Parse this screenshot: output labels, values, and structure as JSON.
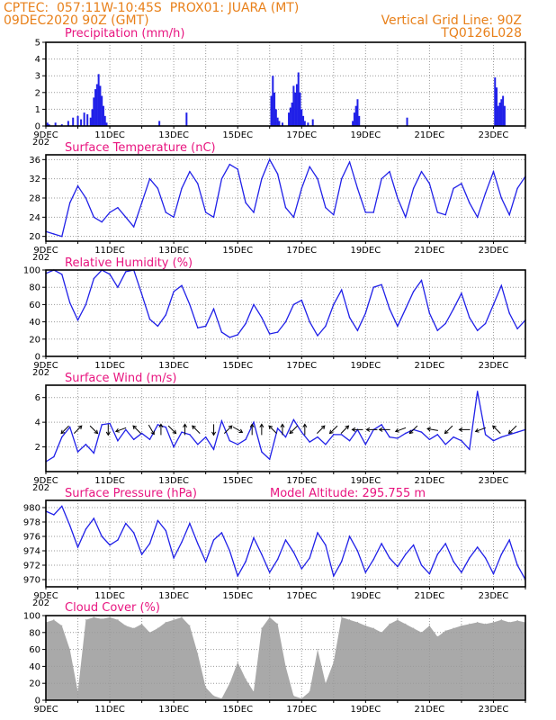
{
  "header": {
    "line1_left": "CPTEC:  057:11W-10:45S  PROX01: JUARA (MT)",
    "line2_left": "09DEC2020 90Z (GMT)",
    "line2_right": "Vertical Grid Line: 90Z",
    "line3_right": "TQ0126L028"
  },
  "colors": {
    "header": "#e8801a",
    "title": "#e8147f",
    "series": "#2020e8",
    "cloud": "#a9a9a9",
    "grid": "#9a9a9a"
  },
  "x_axis": {
    "labels": [
      "9DEC",
      "11DEC",
      "13DEC",
      "15DEC",
      "17DEC",
      "19DEC",
      "21DEC",
      "23DEC"
    ],
    "year_stub": "202"
  },
  "chart_data": [
    {
      "type": "bar",
      "title": "Precipitation (mm/h)",
      "ylim": [
        0,
        5
      ],
      "yticks": [
        0,
        1,
        2,
        3,
        4,
        5
      ],
      "x": [
        0.05,
        0.1,
        0.3,
        0.5,
        0.7,
        0.85,
        1.0,
        1.1,
        1.2,
        1.3,
        1.4,
        1.45,
        1.5,
        1.55,
        1.6,
        1.65,
        1.7,
        1.75,
        1.8,
        1.85,
        1.9,
        3.55,
        4.4,
        7.05,
        7.1,
        7.15,
        7.2,
        7.25,
        7.3,
        7.4,
        7.6,
        7.65,
        7.7,
        7.75,
        7.8,
        7.85,
        7.9,
        7.95,
        8.0,
        8.05,
        8.1,
        8.2,
        8.35,
        9.6,
        9.65,
        9.7,
        9.75,
        9.8,
        11.3,
        14.05,
        14.1,
        14.15,
        14.2,
        14.25,
        14.3,
        14.35
      ],
      "values": [
        0.2,
        0.1,
        0.2,
        0.1,
        0.3,
        0.5,
        0.6,
        0.4,
        0.8,
        0.7,
        0.5,
        1.0,
        1.7,
        2.2,
        2.5,
        3.1,
        2.4,
        1.8,
        1.2,
        0.6,
        0.2,
        0.3,
        0.8,
        1.8,
        3.0,
        2.0,
        1.0,
        0.5,
        0.3,
        0.2,
        0.8,
        1.1,
        1.4,
        2.4,
        2.0,
        2.5,
        3.2,
        2.0,
        1.0,
        0.6,
        0.3,
        0.2,
        0.4,
        0.3,
        0.8,
        1.2,
        1.6,
        0.6,
        0.5,
        2.9,
        2.3,
        1.2,
        1.4,
        1.6,
        1.8,
        1.2
      ]
    },
    {
      "type": "line",
      "title": "Surface Temperature (nC)",
      "ylim": [
        19,
        37
      ],
      "yticks": [
        20,
        24,
        28,
        32,
        36
      ],
      "x": [
        0,
        0.25,
        0.5,
        0.75,
        1.0,
        1.25,
        1.5,
        1.75,
        2.0,
        2.25,
        2.5,
        2.75,
        3.0,
        3.25,
        3.5,
        3.75,
        4.0,
        4.25,
        4.5,
        4.75,
        5.0,
        5.25,
        5.5,
        5.75,
        6.0,
        6.25,
        6.5,
        6.75,
        7.0,
        7.25,
        7.5,
        7.75,
        8.0,
        8.25,
        8.5,
        8.75,
        9.0,
        9.25,
        9.5,
        9.75,
        10.0,
        10.25,
        10.5,
        10.75,
        11.0,
        11.25,
        11.5,
        11.75,
        12.0,
        12.25,
        12.5,
        12.75,
        13.0,
        13.25,
        13.5,
        13.75,
        14.0,
        14.25,
        14.5,
        14.75,
        15.0
      ],
      "values": [
        21,
        20.5,
        20,
        27,
        30.5,
        28,
        24,
        23,
        25,
        26,
        24,
        22,
        27,
        32,
        30,
        25,
        24,
        30,
        33.5,
        31,
        25,
        24,
        32,
        35,
        34,
        27,
        25,
        32,
        36,
        33,
        26,
        24,
        30,
        34.5,
        32,
        26,
        24.5,
        32,
        35.5,
        30,
        25,
        25,
        32,
        33.5,
        28,
        24,
        30,
        33.5,
        31,
        25,
        24.5,
        30,
        31,
        27,
        24,
        29,
        33.5,
        28,
        24.5,
        30,
        32.5
      ]
    },
    {
      "type": "line",
      "title": "Relative Humidity (%)",
      "ylim": [
        0,
        100
      ],
      "yticks": [
        0,
        20,
        40,
        60,
        80,
        100
      ],
      "x": [
        0,
        0.25,
        0.5,
        0.75,
        1.0,
        1.25,
        1.5,
        1.75,
        2.0,
        2.25,
        2.5,
        2.75,
        3.0,
        3.25,
        3.5,
        3.75,
        4.0,
        4.25,
        4.5,
        4.75,
        5.0,
        5.25,
        5.5,
        5.75,
        6.0,
        6.25,
        6.5,
        6.75,
        7.0,
        7.25,
        7.5,
        7.75,
        8.0,
        8.25,
        8.5,
        8.75,
        9.0,
        9.25,
        9.5,
        9.75,
        10.0,
        10.25,
        10.5,
        10.75,
        11.0,
        11.25,
        11.5,
        11.75,
        12.0,
        12.25,
        12.5,
        12.75,
        13.0,
        13.25,
        13.5,
        13.75,
        14.0,
        14.25,
        14.5,
        14.75,
        15.0
      ],
      "values": [
        96,
        100,
        95,
        62,
        42,
        60,
        90,
        100,
        95,
        80,
        98,
        100,
        72,
        43,
        35,
        48,
        75,
        82,
        60,
        33,
        35,
        55,
        28,
        22,
        25,
        38,
        60,
        45,
        26,
        28,
        40,
        60,
        65,
        40,
        24,
        35,
        60,
        77,
        45,
        30,
        50,
        80,
        83,
        55,
        35,
        55,
        75,
        88,
        50,
        30,
        38,
        55,
        73,
        45,
        30,
        38,
        60,
        82,
        50,
        32,
        42
      ]
    },
    {
      "type": "line",
      "title": "Surface Wind (m/s)",
      "ylim": [
        0,
        7
      ],
      "yticks": [
        2,
        4,
        6
      ],
      "x": [
        0,
        0.25,
        0.5,
        0.75,
        1.0,
        1.25,
        1.5,
        1.75,
        2.0,
        2.25,
        2.5,
        2.75,
        3.0,
        3.25,
        3.5,
        3.75,
        4.0,
        4.25,
        4.5,
        4.75,
        5.0,
        5.25,
        5.5,
        5.75,
        6.0,
        6.25,
        6.5,
        6.75,
        7.0,
        7.25,
        7.5,
        7.75,
        8.0,
        8.25,
        8.5,
        8.75,
        9.0,
        9.25,
        9.5,
        9.75,
        10.0,
        10.25,
        10.5,
        10.75,
        11.0,
        11.25,
        11.5,
        11.75,
        12.0,
        12.25,
        12.5,
        12.75,
        13.0,
        13.25,
        13.5,
        13.75,
        14.0,
        14.25,
        14.5,
        14.75,
        15.0
      ],
      "values": [
        0.8,
        1.2,
        2.8,
        3.6,
        1.6,
        2.2,
        1.5,
        3.8,
        3.9,
        2.5,
        3.4,
        2.6,
        3.1,
        2.6,
        3.8,
        3.6,
        2.0,
        3.2,
        3.0,
        2.2,
        2.8,
        1.8,
        4.1,
        2.5,
        2.2,
        2.6,
        4.0,
        1.6,
        1.0,
        3.5,
        2.8,
        4.2,
        3.2,
        2.4,
        2.8,
        2.2,
        3.0,
        3.0,
        2.5,
        3.4,
        2.2,
        3.4,
        3.8,
        2.8,
        2.7,
        3.1,
        3.4,
        3.2,
        2.6,
        3.0,
        2.2,
        2.8,
        2.5,
        1.8,
        6.5,
        3.0,
        2.5,
        2.8,
        3.0,
        3.2,
        3.4
      ],
      "arrows_x": [
        0.6,
        1.0,
        1.5,
        1.95,
        2.35,
        2.85,
        3.3,
        3.6,
        3.95,
        4.35,
        4.7,
        5.25,
        5.7,
        6.0,
        6.45,
        6.75,
        7.1,
        7.4,
        7.75,
        8.1,
        8.6,
        9.0,
        9.35,
        9.75,
        10.2,
        10.6,
        11.1,
        11.5,
        12.1,
        12.6,
        13.1,
        13.6,
        14.1,
        14.6
      ],
      "arrows_deg": [
        225,
        45,
        315,
        270,
        200,
        135,
        300,
        90,
        315,
        90,
        135,
        270,
        45,
        330,
        90,
        90,
        135,
        90,
        225,
        90,
        45,
        225,
        45,
        180,
        180,
        180,
        200,
        225,
        170,
        225,
        180,
        200,
        135,
        225
      ]
    },
    {
      "type": "line",
      "title": "Surface Pressure (hPa)",
      "annotation": "Model Altitude: 295.755 m",
      "ylim": [
        969,
        981
      ],
      "yticks": [
        970,
        972,
        974,
        976,
        978,
        980
      ],
      "x": [
        0,
        0.25,
        0.5,
        0.75,
        1.0,
        1.25,
        1.5,
        1.75,
        2.0,
        2.25,
        2.5,
        2.75,
        3.0,
        3.25,
        3.5,
        3.75,
        4.0,
        4.25,
        4.5,
        4.75,
        5.0,
        5.25,
        5.5,
        5.75,
        6.0,
        6.25,
        6.5,
        6.75,
        7.0,
        7.25,
        7.5,
        7.75,
        8.0,
        8.25,
        8.5,
        8.75,
        9.0,
        9.25,
        9.5,
        9.75,
        10.0,
        10.25,
        10.5,
        10.75,
        11.0,
        11.25,
        11.5,
        11.75,
        12.0,
        12.25,
        12.5,
        12.75,
        13.0,
        13.25,
        13.5,
        13.75,
        14.0,
        14.25,
        14.5,
        14.75,
        15.0
      ],
      "values": [
        979.5,
        979.0,
        980.2,
        977.5,
        974.5,
        977.0,
        978.5,
        976.0,
        974.8,
        975.5,
        977.8,
        976.5,
        973.5,
        975.0,
        978.2,
        976.8,
        973.0,
        975.2,
        977.8,
        975.0,
        972.5,
        975.5,
        976.5,
        974.0,
        970.5,
        972.5,
        975.8,
        973.5,
        971.0,
        972.8,
        975.5,
        973.8,
        971.5,
        973.0,
        976.5,
        974.8,
        970.5,
        972.5,
        976.0,
        974.0,
        971.0,
        972.8,
        975.0,
        973.0,
        971.8,
        973.5,
        974.8,
        972.0,
        970.8,
        973.5,
        975.0,
        972.5,
        971.0,
        973.0,
        974.5,
        973.0,
        970.8,
        973.5,
        975.5,
        972.0,
        970.0
      ]
    },
    {
      "type": "area",
      "title": "Cloud Cover (%)",
      "ylim": [
        0,
        100
      ],
      "yticks": [
        0,
        20,
        40,
        60,
        80,
        100
      ],
      "x": [
        0,
        0.25,
        0.5,
        0.75,
        1.0,
        1.25,
        1.5,
        1.75,
        2.0,
        2.25,
        2.5,
        2.75,
        3.0,
        3.25,
        3.5,
        3.75,
        4.0,
        4.25,
        4.5,
        4.75,
        5.0,
        5.25,
        5.5,
        5.75,
        6.0,
        6.25,
        6.5,
        6.75,
        7.0,
        7.25,
        7.5,
        7.75,
        8.0,
        8.25,
        8.5,
        8.75,
        9.0,
        9.25,
        9.5,
        9.75,
        10.0,
        10.25,
        10.5,
        10.75,
        11.0,
        11.25,
        11.5,
        11.75,
        12.0,
        12.25,
        12.5,
        12.75,
        13.0,
        13.25,
        13.5,
        13.75,
        14.0,
        14.25,
        14.5,
        14.75,
        15.0
      ],
      "values": [
        92,
        95,
        88,
        60,
        10,
        95,
        98,
        96,
        98,
        95,
        88,
        85,
        90,
        80,
        85,
        92,
        95,
        98,
        88,
        55,
        15,
        5,
        2,
        20,
        45,
        25,
        10,
        85,
        98,
        90,
        40,
        5,
        2,
        10,
        60,
        20,
        45,
        98,
        95,
        92,
        88,
        85,
        80,
        90,
        95,
        90,
        85,
        80,
        88,
        75,
        82,
        85,
        88,
        90,
        92,
        90,
        92,
        95,
        92,
        94,
        92
      ]
    }
  ]
}
